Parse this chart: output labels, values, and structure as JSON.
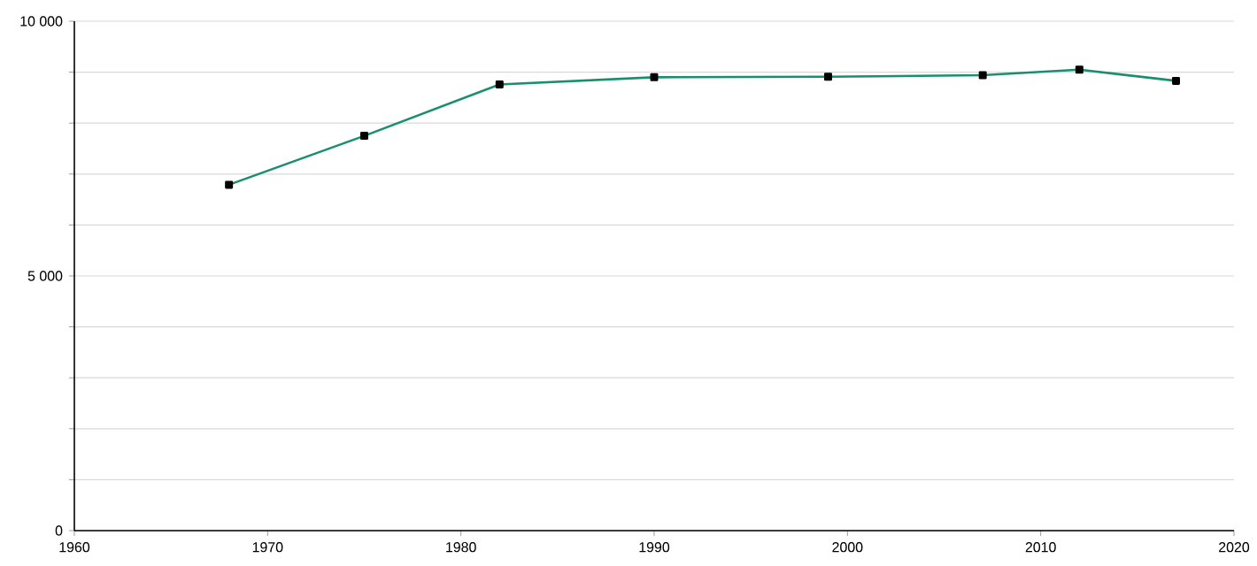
{
  "chart_data": {
    "type": "line",
    "x": [
      1968,
      1975,
      1982,
      1990,
      1999,
      2007,
      2012,
      2017
    ],
    "series": [
      {
        "color": "#1a8f6e",
        "values": [
          6790,
          7750,
          8760,
          8900,
          8910,
          8940,
          9050,
          8830
        ]
      }
    ],
    "xlim": [
      1960,
      2020
    ],
    "xticks": [
      1960,
      1970,
      1980,
      1990,
      2000,
      2010,
      2020
    ],
    "ylim": [
      0,
      10000
    ],
    "yticks": [
      {
        "value": 0,
        "label": "0"
      },
      {
        "value": 1000,
        "label": null
      },
      {
        "value": 2000,
        "label": null
      },
      {
        "value": 3000,
        "label": null
      },
      {
        "value": 4000,
        "label": null
      },
      {
        "value": 5000,
        "label": "5 000"
      },
      {
        "value": 6000,
        "label": null
      },
      {
        "value": 7000,
        "label": null
      },
      {
        "value": 8000,
        "label": null
      },
      {
        "value": 9000,
        "label": null
      },
      {
        "value": 10000,
        "label": "10 000"
      }
    ],
    "grid": "y",
    "marker": "square",
    "line_style": "solid"
  }
}
